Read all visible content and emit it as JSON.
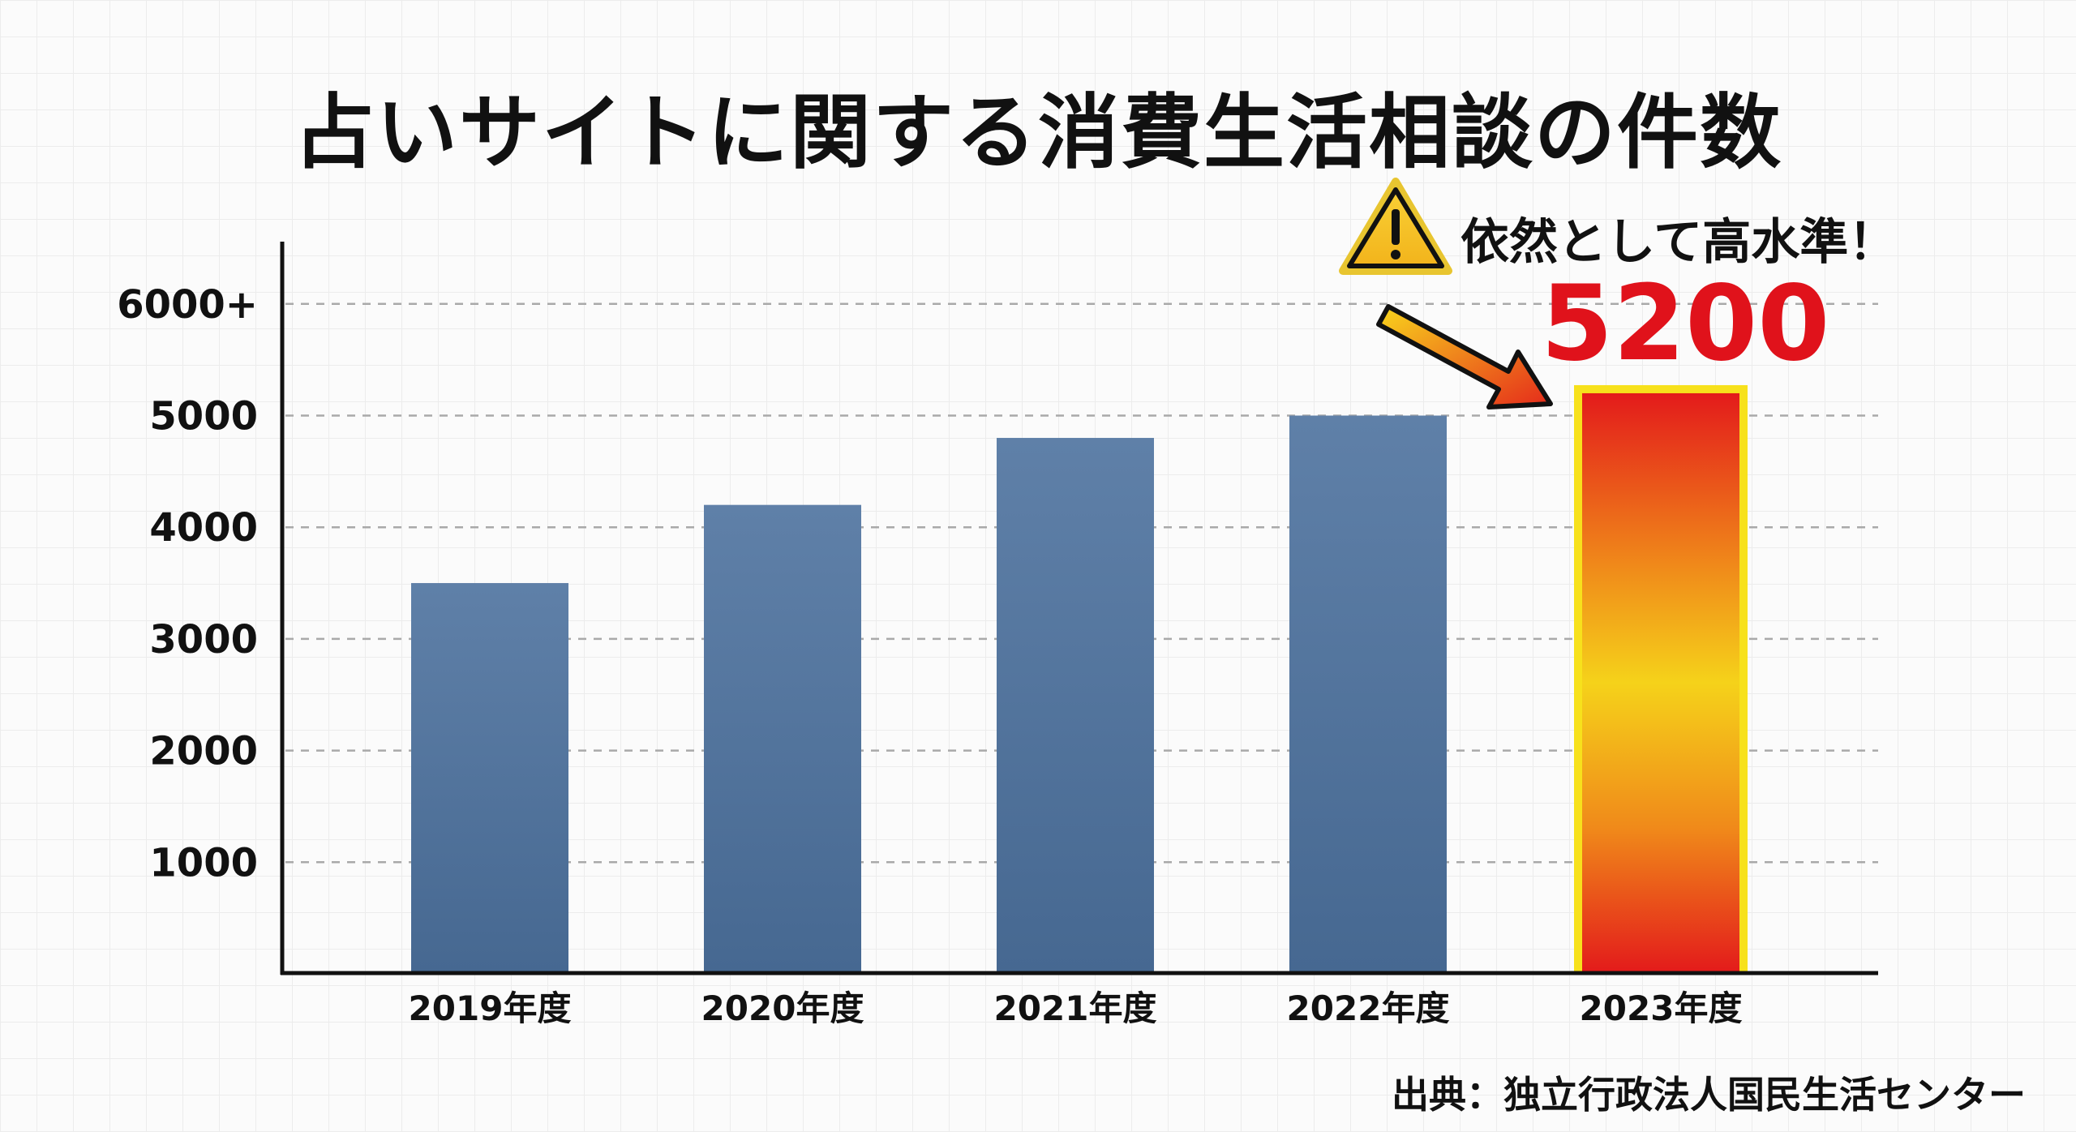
{
  "chart_data": {
    "type": "bar",
    "title": "占いサイトに関する消費生活相談の件数",
    "categories": [
      "2019年度",
      "2020年度",
      "2021年度",
      "2022年度",
      "2023年度"
    ],
    "values": [
      3500,
      4200,
      4800,
      5000,
      5200
    ],
    "ylim": [
      0,
      6000
    ],
    "yticks": [
      1000,
      2000,
      3000,
      4000,
      5000,
      6000
    ],
    "ytick_labels": [
      "1000",
      "2000",
      "3000",
      "4000",
      "5000",
      "6000+"
    ],
    "xlabel": "",
    "ylabel": "",
    "grid": true,
    "highlight_index": 4,
    "annotation": {
      "text": "依然として高水準！",
      "value_label": "5200",
      "icon": "warning-icon"
    },
    "source": "出典：独立行政法人国民生活センター",
    "colors": {
      "bar": "#4f6f97",
      "highlight_top": "#e31b1b",
      "highlight_mid": "#f5d21a",
      "highlight_border": "#f7e11c",
      "value_label": "#e0121b"
    }
  }
}
